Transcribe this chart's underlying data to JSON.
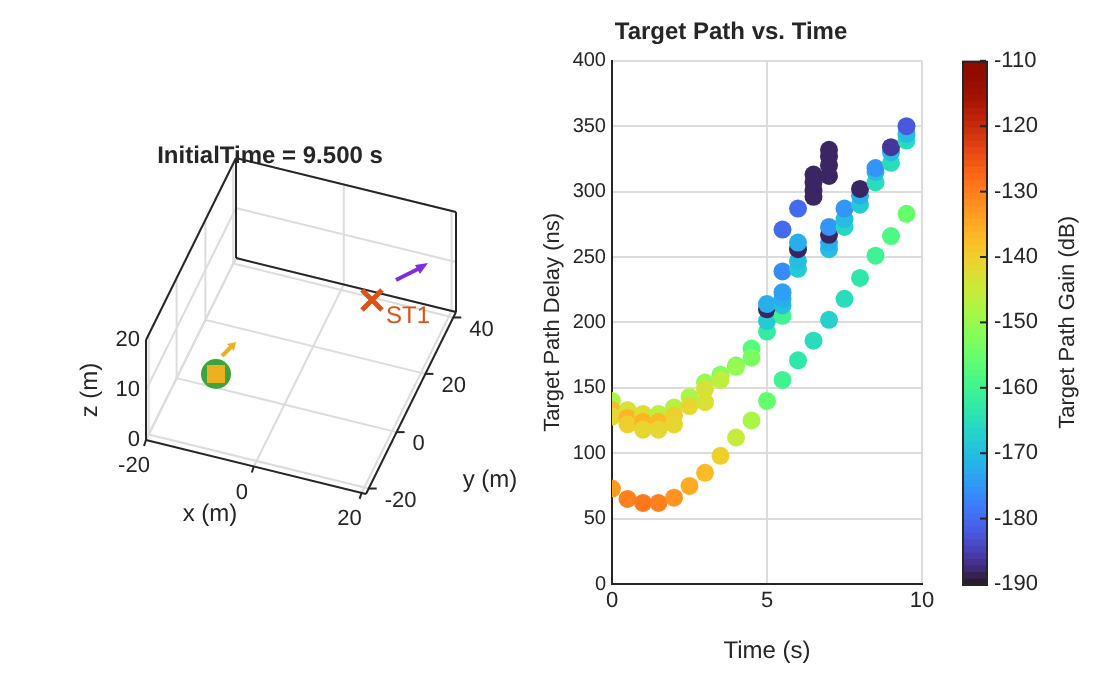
{
  "chart_data": [
    {
      "type": "other",
      "title": "InitialTime = 9.500 s",
      "xlabel": "x (m)",
      "ylabel": "y (m)",
      "annotations": [
        "-20",
        "0",
        "20",
        "-20",
        "0",
        "20",
        "40",
        "0",
        "10",
        "20",
        "z (m)",
        "ST1"
      ]
    },
    {
      "type": "scatter",
      "title": "Target Path vs. Time",
      "xlabel": "Time (s)",
      "ylabel": "Target Path Delay (ns)",
      "clabel": "Target Path Gain (dB)",
      "xlim": [
        0,
        10
      ],
      "xticks": [
        0,
        5,
        10
      ],
      "ylim": [
        0,
        400
      ],
      "yticks": [
        0,
        50,
        100,
        150,
        200,
        250,
        300,
        350,
        400
      ],
      "grid": true,
      "legend": false,
      "clim": [
        -190,
        -110
      ],
      "cticks": [
        -190,
        -180,
        -170,
        -160,
        -150,
        -140,
        -130,
        -120,
        -110
      ],
      "marker": "circle",
      "x": [
        0,
        0,
        0,
        0,
        0.5,
        0.5,
        0.5,
        0.5,
        1,
        1,
        1,
        1,
        1.5,
        1.5,
        1.5,
        1.5,
        2,
        2,
        2,
        2,
        2.5,
        2.5,
        2.5,
        3,
        3,
        3,
        3,
        3.5,
        3.5,
        3.5,
        4,
        4,
        4,
        4.5,
        4.5,
        4.5,
        5,
        5,
        5,
        5,
        5,
        5.5,
        5.5,
        5.5,
        5.5,
        5.5,
        5.5,
        5.5,
        6,
        6,
        6,
        6,
        6,
        6,
        6.5,
        6.5,
        6.5,
        6.5,
        6.5,
        7,
        7,
        7,
        7,
        7,
        7,
        7,
        7,
        7,
        7.5,
        7.5,
        7.5,
        7.5,
        8,
        8,
        8,
        8,
        8.5,
        8.5,
        8.5,
        8.5,
        9,
        9,
        9,
        9,
        9.5,
        9.5,
        9.5,
        9.5
      ],
      "values": [
        140,
        133,
        128,
        73,
        133,
        127,
        122,
        65,
        130,
        124,
        118,
        62,
        130,
        124,
        118,
        62,
        135,
        129,
        122,
        66,
        143,
        136,
        75,
        154,
        149,
        139,
        85,
        160,
        156,
        98,
        167,
        166,
        112,
        180,
        173,
        125,
        193,
        201,
        210,
        214,
        140,
        205,
        213,
        218,
        223,
        239,
        271,
        156,
        241,
        247,
        256,
        261,
        287,
        171,
        296,
        301,
        307,
        313,
        186,
        256,
        261,
        267,
        273,
        312,
        320,
        327,
        332,
        202,
        273,
        279,
        287,
        218,
        290,
        297,
        302,
        234,
        307,
        315,
        318,
        251,
        322,
        330,
        334,
        266,
        339,
        344,
        350,
        283
      ],
      "cvalues": [
        -148,
        -137,
        -141,
        -133,
        -143,
        -136,
        -140,
        -130,
        -142,
        -136,
        -141,
        -129,
        -146,
        -137,
        -141,
        -130,
        -147,
        -140,
        -141,
        -132,
        -148,
        -141,
        -135,
        -150,
        -143,
        -143,
        -137,
        -152,
        -146,
        -140,
        -156,
        -150,
        -145,
        -157,
        -153,
        -148,
        -162,
        -168,
        -188,
        -172,
        -155,
        -160,
        -170,
        -172,
        -174,
        -176,
        -180,
        -160,
        -168,
        -170,
        -188,
        -172,
        -180,
        -163,
        -188,
        -188,
        -188,
        -188,
        -165,
        -170,
        -172,
        -188,
        -175,
        -188,
        -188,
        -188,
        -188,
        -167,
        -166,
        -170,
        -175,
        -165,
        -168,
        -172,
        -188,
        -163,
        -165,
        -170,
        -175,
        -160,
        -165,
        -170,
        -186,
        -158,
        -165,
        -170,
        -182,
        -155
      ]
    }
  ]
}
